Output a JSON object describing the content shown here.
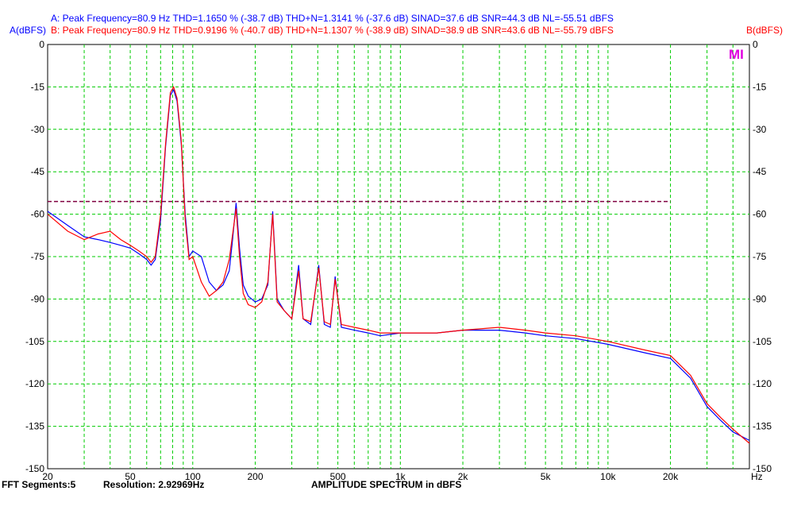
{
  "header": {
    "line_a": "A: Peak Frequency=80.9 Hz  THD=1.1650 % (-38.7 dB)  THD+N=1.3141 % (-37.6 dB)  SINAD=37.6 dB  SNR=44.3 dB  NL=-55.51 dBFS",
    "line_b": "B: Peak Frequency=80.9 Hz  THD=0.9196 % (-40.7 dB)  THD+N=1.1307 % (-38.9 dB)  SINAD=38.9 dB  SNR=43.6 dB  NL=-55.79 dBFS",
    "left_axis_label": "A(dBFS)",
    "right_axis_label": "B(dBFS)",
    "logo": "MI"
  },
  "footer": {
    "segments": "FFT Segments:5",
    "resolution": "Resolution: 2.92969Hz",
    "title": "AMPLITUDE SPECTRUM in dBFS"
  },
  "colors": {
    "series_a": "#0000ff",
    "series_b": "#ff0000",
    "grid": "#00cc00",
    "noise_level_line": "#800040",
    "logo": "#e000e0"
  },
  "chart_data": {
    "type": "line",
    "title": "AMPLITUDE SPECTRUM in dBFS",
    "xlabel": "Hz",
    "ylabel": "A(dBFS)",
    "ylabel_right": "B(dBFS)",
    "x_scale": "log",
    "xlim": [
      20,
      48000
    ],
    "ylim": [
      -150,
      0
    ],
    "grid": true,
    "x_tick_labels": [
      {
        "value": 20,
        "label": "20"
      },
      {
        "value": 50,
        "label": "50"
      },
      {
        "value": 100,
        "label": "100"
      },
      {
        "value": 200,
        "label": "200"
      },
      {
        "value": 500,
        "label": "500"
      },
      {
        "value": 1000,
        "label": "1k"
      },
      {
        "value": 2000,
        "label": "2k"
      },
      {
        "value": 5000,
        "label": "5k"
      },
      {
        "value": 10000,
        "label": "10k"
      },
      {
        "value": 20000,
        "label": "20k"
      }
    ],
    "y_ticks": [
      0,
      -15,
      -30,
      -45,
      -60,
      -75,
      -90,
      -105,
      -120,
      -135,
      -150
    ],
    "noise_level_line": {
      "y": -55.5,
      "x_from": 20,
      "x_to": 20000
    },
    "series": [
      {
        "name": "A",
        "color": "#0000ff",
        "x": [
          20,
          25,
          30,
          35,
          40,
          45,
          50,
          55,
          60,
          63,
          66,
          70,
          74,
          78,
          80.9,
          84,
          88,
          92,
          96,
          100,
          110,
          120,
          130,
          140,
          150,
          155,
          161.8,
          168,
          175,
          185,
          200,
          215,
          230,
          242.7,
          255,
          275,
          300,
          323.6,
          340,
          370,
          404.5,
          430,
          460,
          485.4,
          520,
          600,
          700,
          800,
          1000,
          1500,
          2000,
          3000,
          4000,
          5000,
          7000,
          10000,
          15000,
          20000,
          25000,
          30000,
          35000,
          40000,
          48000
        ],
        "y": [
          -59,
          -64,
          -68,
          -69,
          -70,
          -71,
          -72,
          -74,
          -76,
          -78,
          -76,
          -62,
          -36,
          -18,
          -16,
          -20,
          -35,
          -60,
          -75,
          -73,
          -75,
          -84,
          -87,
          -85,
          -80,
          -70,
          -56,
          -72,
          -85,
          -89,
          -91,
          -90,
          -85,
          -59,
          -90,
          -94,
          -97,
          -78,
          -97,
          -99,
          -78,
          -99,
          -100,
          -82,
          -100,
          -101,
          -102,
          -103,
          -102,
          -102,
          -101,
          -101,
          -102,
          -103,
          -104,
          -106,
          -109,
          -111,
          -118,
          -128,
          -133,
          -137,
          -140
        ]
      },
      {
        "name": "B",
        "color": "#ff0000",
        "x": [
          20,
          25,
          30,
          35,
          40,
          45,
          50,
          55,
          60,
          63,
          66,
          70,
          74,
          78,
          80.9,
          84,
          88,
          92,
          96,
          100,
          110,
          120,
          130,
          140,
          150,
          155,
          161.8,
          168,
          175,
          185,
          200,
          215,
          230,
          242.7,
          255,
          275,
          300,
          323.6,
          340,
          370,
          404.5,
          430,
          460,
          485.4,
          520,
          600,
          700,
          800,
          1000,
          1500,
          2000,
          3000,
          4000,
          5000,
          7000,
          10000,
          15000,
          20000,
          25000,
          30000,
          35000,
          40000,
          48000
        ],
        "y": [
          -60,
          -66,
          -69,
          -67,
          -66,
          -69,
          -71,
          -73,
          -75,
          -77,
          -75,
          -60,
          -35,
          -17,
          -15,
          -19,
          -34,
          -62,
          -76,
          -75,
          -84,
          -89,
          -87,
          -84,
          -76,
          -68,
          -58,
          -75,
          -88,
          -92,
          -93,
          -91,
          -84,
          -60,
          -91,
          -94,
          -97,
          -80,
          -97,
          -98,
          -79,
          -98,
          -99,
          -83,
          -99,
          -100,
          -101,
          -102,
          -102,
          -102,
          -101,
          -100,
          -101,
          -102,
          -103,
          -105,
          -108,
          -110,
          -117,
          -127,
          -132,
          -136,
          -141
        ]
      }
    ]
  }
}
